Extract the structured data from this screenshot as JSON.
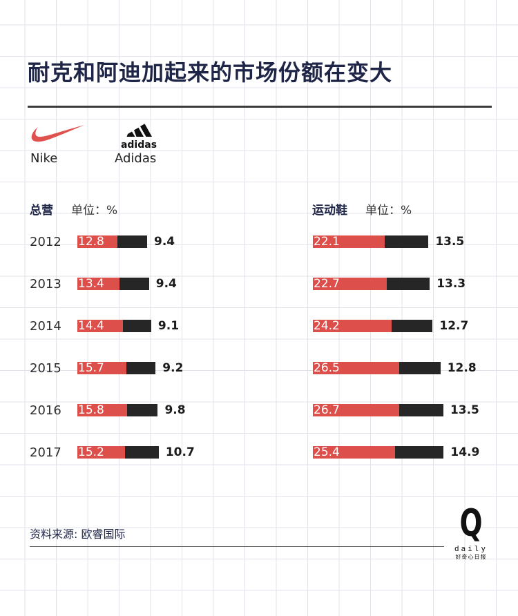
{
  "title": "耐克和阿迪加起来的市场份额在变大",
  "brands": {
    "nike": "Nike",
    "adidas": "Adidas",
    "adidas_logo_text": "adidas"
  },
  "colors": {
    "nike": "#dc4f4b",
    "adidas": "#262626"
  },
  "sections": {
    "total": {
      "name": "总营",
      "unit": "单位：%"
    },
    "shoes": {
      "name": "运动鞋",
      "unit": "单位：%"
    }
  },
  "chart_data": [
    {
      "type": "bar",
      "stacked": true,
      "orientation": "horizontal",
      "title": "总营",
      "unit": "单位：%",
      "categories": [
        "2012",
        "2013",
        "2014",
        "2015",
        "2016",
        "2017"
      ],
      "series": [
        {
          "name": "Nike",
          "values": [
            12.8,
            13.4,
            14.4,
            15.7,
            15.8,
            15.2
          ]
        },
        {
          "name": "Adidas",
          "values": [
            9.4,
            9.4,
            9.1,
            9.2,
            9.8,
            10.7
          ]
        }
      ]
    },
    {
      "type": "bar",
      "stacked": true,
      "orientation": "horizontal",
      "title": "运动鞋",
      "unit": "单位：%",
      "categories": [
        "2012",
        "2013",
        "2014",
        "2015",
        "2016",
        "2017"
      ],
      "series": [
        {
          "name": "Nike",
          "values": [
            22.1,
            22.7,
            24.2,
            26.5,
            26.7,
            25.4
          ]
        },
        {
          "name": "Adidas",
          "values": [
            13.5,
            13.3,
            12.7,
            12.8,
            13.5,
            14.9
          ]
        }
      ]
    }
  ],
  "source": "资料来源: 欧睿国际",
  "logo": {
    "mark": "Q",
    "word": "daily",
    "cn": "好奇心日报"
  }
}
